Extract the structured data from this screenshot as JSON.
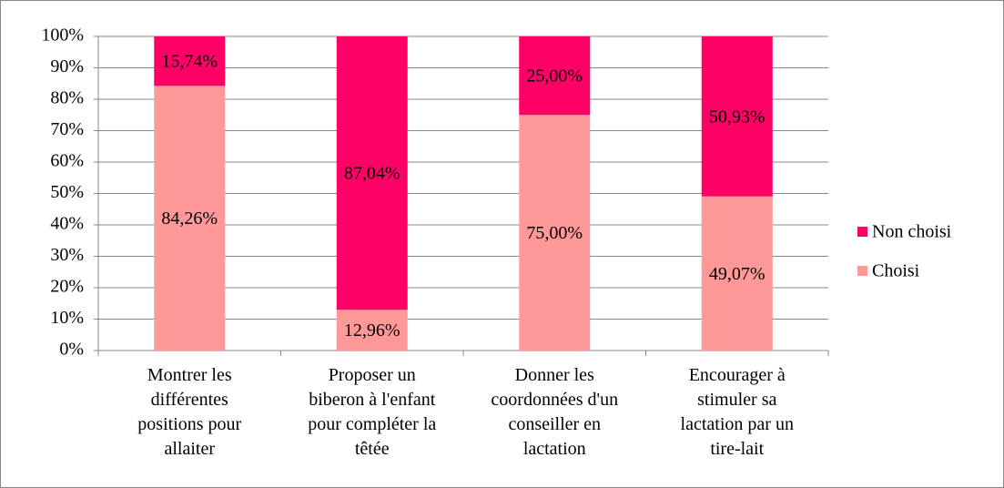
{
  "chart_data": {
    "type": "stacked_bar",
    "categories": [
      "Montrer les\ndifférentes\npositions pour\nallaiter",
      "Proposer un\nbiberon à l'enfant\npour compléter la\ntêtée",
      "Donner les\ncoordonnées d'un\nconseiller en\nlactation",
      "Encourager à\nstimuler sa\nlactation par un\ntire-lait"
    ],
    "series": [
      {
        "name": "Choisi",
        "color": "#ff9999",
        "values": [
          84.26,
          12.96,
          75,
          49.07
        ],
        "value_labels": [
          "84,26%",
          "12,96%",
          "75,00%",
          "49,07%"
        ]
      },
      {
        "name": "Non choisi",
        "color": "#ff0066",
        "values": [
          15.74,
          87.04,
          25,
          50.93
        ],
        "value_labels": [
          "15,74%",
          "87,04%",
          "25,00%",
          "50,93%"
        ]
      }
    ],
    "ylim": [
      0,
      100
    ],
    "yticks": [
      {
        "value": 0,
        "label": "0%"
      },
      {
        "value": 10,
        "label": "10%"
      },
      {
        "value": 20,
        "label": "20%"
      },
      {
        "value": 30,
        "label": "30%"
      },
      {
        "value": 40,
        "label": "40%"
      },
      {
        "value": 50,
        "label": "50%"
      },
      {
        "value": 60,
        "label": "60%"
      },
      {
        "value": 70,
        "label": "70%"
      },
      {
        "value": 80,
        "label": "80%"
      },
      {
        "value": 90,
        "label": "90%"
      },
      {
        "value": 100,
        "label": "100%"
      }
    ],
    "grid": true,
    "legend": "right"
  }
}
